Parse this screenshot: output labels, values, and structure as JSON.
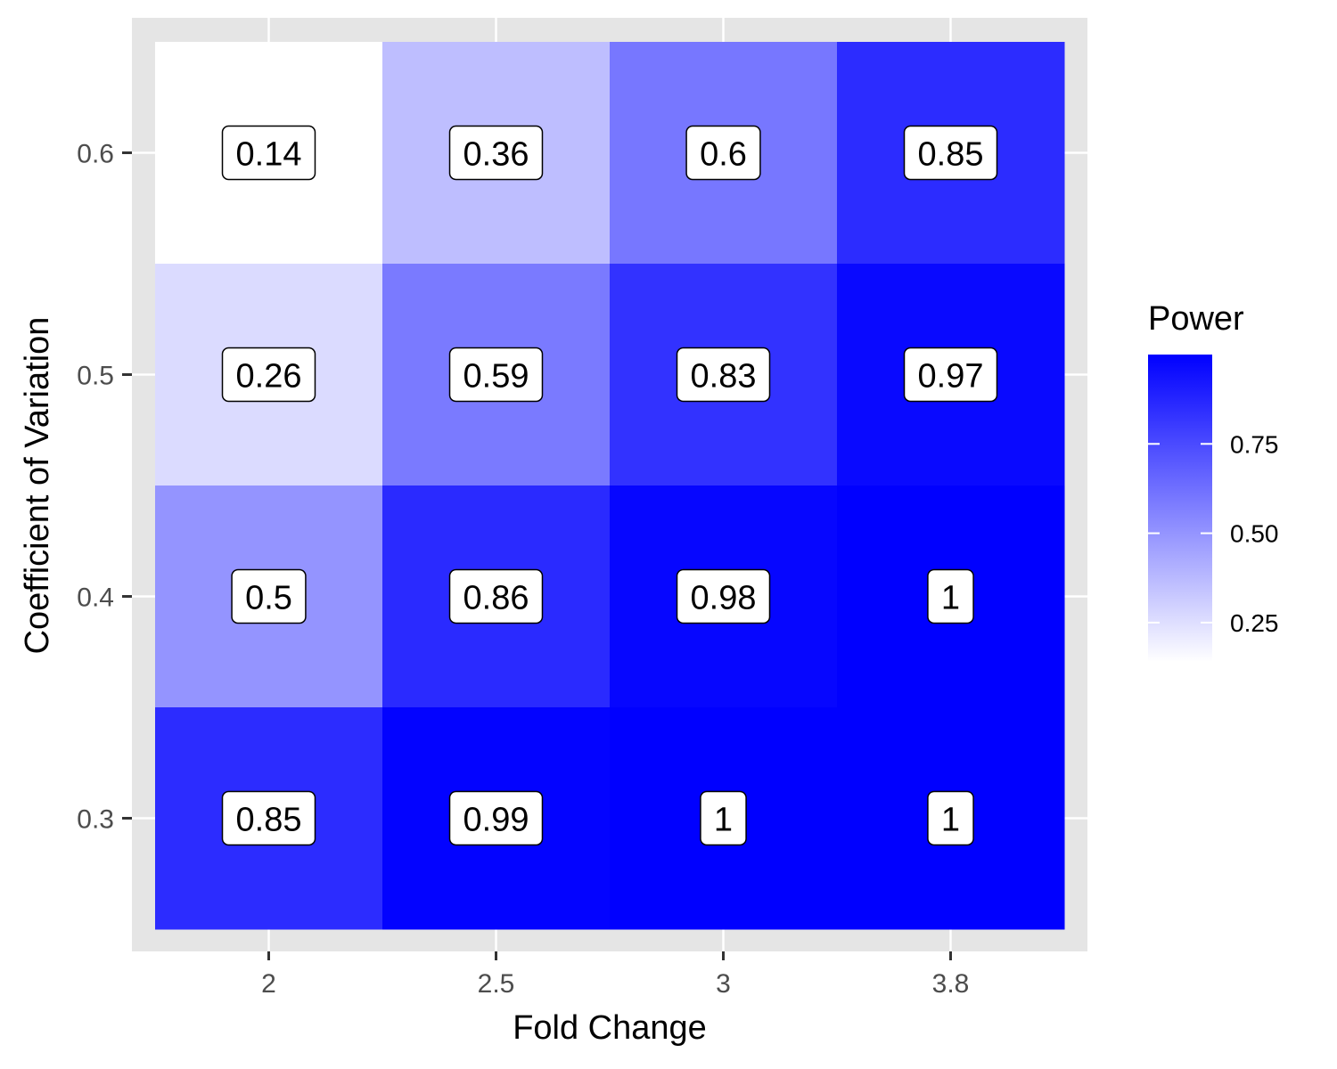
{
  "chart_data": {
    "type": "heatmap",
    "title": "",
    "xlabel": "Fold Change",
    "ylabel": "Coefficient of Variation",
    "x_categories": [
      "2",
      "2.5",
      "3",
      "3.8"
    ],
    "y_categories": [
      "0.3",
      "0.4",
      "0.5",
      "0.6"
    ],
    "cells": [
      {
        "x": "2",
        "y": "0.6",
        "value": 0.14,
        "label": "0.14"
      },
      {
        "x": "2.5",
        "y": "0.6",
        "value": 0.36,
        "label": "0.36"
      },
      {
        "x": "3",
        "y": "0.6",
        "value": 0.6,
        "label": "0.6"
      },
      {
        "x": "3.8",
        "y": "0.6",
        "value": 0.85,
        "label": "0.85"
      },
      {
        "x": "2",
        "y": "0.5",
        "value": 0.26,
        "label": "0.26"
      },
      {
        "x": "2.5",
        "y": "0.5",
        "value": 0.59,
        "label": "0.59"
      },
      {
        "x": "3",
        "y": "0.5",
        "value": 0.83,
        "label": "0.83"
      },
      {
        "x": "3.8",
        "y": "0.5",
        "value": 0.97,
        "label": "0.97"
      },
      {
        "x": "2",
        "y": "0.4",
        "value": 0.5,
        "label": "0.5"
      },
      {
        "x": "2.5",
        "y": "0.4",
        "value": 0.86,
        "label": "0.86"
      },
      {
        "x": "3",
        "y": "0.4",
        "value": 0.98,
        "label": "0.98"
      },
      {
        "x": "3.8",
        "y": "0.4",
        "value": 1,
        "label": "1"
      },
      {
        "x": "2",
        "y": "0.3",
        "value": 0.85,
        "label": "0.85"
      },
      {
        "x": "2.5",
        "y": "0.3",
        "value": 0.99,
        "label": "0.99"
      },
      {
        "x": "3",
        "y": "0.3",
        "value": 1,
        "label": "1"
      },
      {
        "x": "3.8",
        "y": "0.3",
        "value": 1,
        "label": "1"
      }
    ],
    "legend": {
      "title": "Power",
      "placement": "right",
      "range": [
        0.14,
        1
      ],
      "ticks": [
        0.25,
        0.5,
        0.75
      ],
      "tick_labels": [
        "0.25",
        "0.50",
        "0.75"
      ],
      "low_color": "#ffffff",
      "high_color": "#0000ff"
    },
    "grid": true,
    "panel_background": "#e5e5e5"
  }
}
